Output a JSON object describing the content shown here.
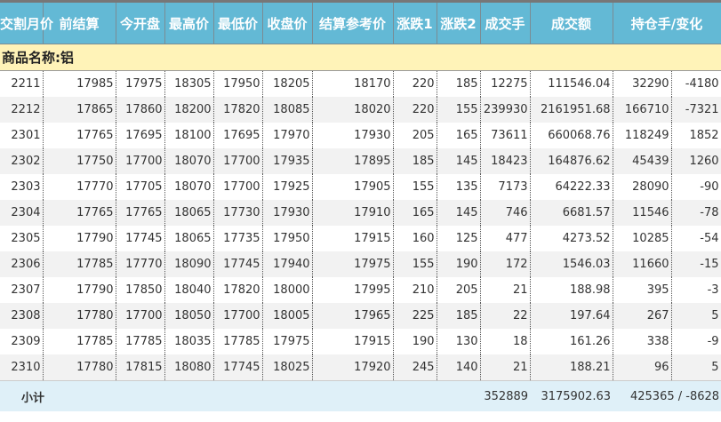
{
  "headers": [
    "交割月价",
    "前结算",
    "今开盘",
    "最高价",
    "最低价",
    "收盘价",
    "结算参考价",
    "涨跌1",
    "涨跌2",
    "成交手",
    "成交额",
    "持仓手/变化"
  ],
  "category": "商品名称:铝",
  "rows": [
    [
      "2211",
      "17985",
      "17975",
      "18305",
      "17950",
      "18205",
      "18170",
      "220",
      "185",
      "12275",
      "111546.04",
      "32290",
      "-4180"
    ],
    [
      "2212",
      "17865",
      "17860",
      "18200",
      "17820",
      "18085",
      "18020",
      "220",
      "155",
      "239930",
      "2161951.68",
      "166710",
      "-7321"
    ],
    [
      "2301",
      "17765",
      "17695",
      "18100",
      "17695",
      "17970",
      "17930",
      "205",
      "165",
      "73611",
      "660068.76",
      "118249",
      "1852"
    ],
    [
      "2302",
      "17750",
      "17700",
      "18070",
      "17700",
      "17935",
      "17895",
      "185",
      "145",
      "18423",
      "164876.62",
      "45439",
      "1260"
    ],
    [
      "2303",
      "17770",
      "17705",
      "18070",
      "17700",
      "17925",
      "17905",
      "155",
      "135",
      "7173",
      "64222.33",
      "28090",
      "-90"
    ],
    [
      "2304",
      "17765",
      "17765",
      "18065",
      "17730",
      "17930",
      "17910",
      "165",
      "145",
      "746",
      "6681.57",
      "11546",
      "-78"
    ],
    [
      "2305",
      "17790",
      "17745",
      "18065",
      "17735",
      "17950",
      "17915",
      "160",
      "125",
      "477",
      "4273.52",
      "10285",
      "-54"
    ],
    [
      "2306",
      "17785",
      "17770",
      "18090",
      "17745",
      "17940",
      "17975",
      "155",
      "190",
      "172",
      "1546.03",
      "11660",
      "-15"
    ],
    [
      "2307",
      "17790",
      "17850",
      "18040",
      "17820",
      "18000",
      "17995",
      "210",
      "205",
      "21",
      "188.98",
      "395",
      "-3"
    ],
    [
      "2308",
      "17780",
      "17700",
      "18050",
      "17700",
      "18005",
      "17965",
      "225",
      "185",
      "22",
      "197.64",
      "267",
      "5"
    ],
    [
      "2309",
      "17785",
      "17785",
      "18035",
      "17785",
      "17975",
      "17915",
      "190",
      "130",
      "18",
      "161.26",
      "338",
      "-9"
    ],
    [
      "2310",
      "17780",
      "17815",
      "18080",
      "17745",
      "18025",
      "17920",
      "245",
      "140",
      "21",
      "188.21",
      "96",
      "5"
    ]
  ],
  "total": {
    "label": "小计",
    "volume": "352889",
    "amount": "3175902.63",
    "position": "425365 / -8628"
  }
}
